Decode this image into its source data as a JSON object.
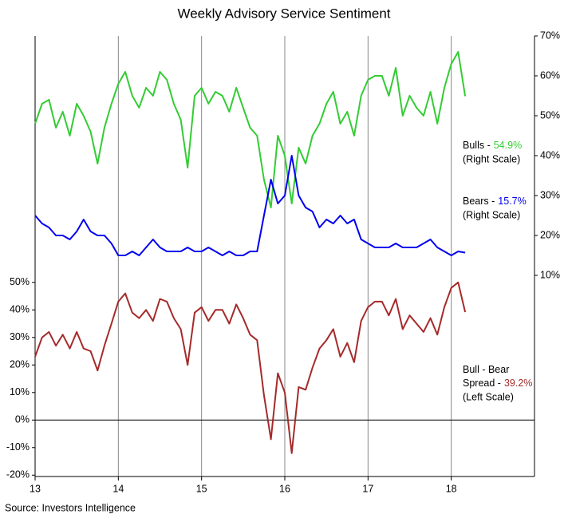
{
  "chart_data": {
    "type": "line",
    "title": "Weekly Advisory Service Sentiment",
    "source": "Source: Investors Intelligence",
    "x": [
      2013,
      2013.083,
      2013.167,
      2013.25,
      2013.333,
      2013.417,
      2013.5,
      2013.583,
      2013.667,
      2013.75,
      2013.833,
      2013.917,
      2014,
      2014.083,
      2014.167,
      2014.25,
      2014.333,
      2014.417,
      2014.5,
      2014.583,
      2014.667,
      2014.75,
      2014.833,
      2014.917,
      2015,
      2015.083,
      2015.167,
      2015.25,
      2015.333,
      2015.417,
      2015.5,
      2015.583,
      2015.667,
      2015.75,
      2015.833,
      2015.917,
      2016,
      2016.083,
      2016.167,
      2016.25,
      2016.333,
      2016.417,
      2016.5,
      2016.583,
      2016.667,
      2016.75,
      2016.833,
      2016.917,
      2017,
      2017.083,
      2017.167,
      2017.25,
      2017.333,
      2017.417,
      2017.5,
      2017.583,
      2017.667,
      2017.75,
      2017.833,
      2017.917,
      2018,
      2018.083,
      2018.167
    ],
    "series": [
      {
        "name": "Bulls",
        "color": "#33cc33",
        "axis": "y2",
        "values": [
          48,
          53,
          54,
          47,
          51,
          45,
          53,
          50,
          46,
          38,
          47,
          53,
          58,
          61,
          55,
          52,
          57,
          55,
          61,
          59,
          53,
          49,
          37,
          55,
          57,
          53,
          56,
          55,
          51,
          57,
          52,
          47,
          45,
          34,
          27,
          45,
          40,
          28,
          42,
          38,
          45,
          48,
          53,
          56,
          48,
          51,
          45,
          55,
          59,
          60,
          60,
          55,
          62,
          50,
          55,
          52,
          50,
          56,
          48,
          57,
          63,
          66,
          54.9
        ]
      },
      {
        "name": "Bears",
        "color": "#0000ee",
        "axis": "y2",
        "values": [
          25,
          23,
          22,
          20,
          20,
          19,
          21,
          24,
          21,
          20,
          20,
          18,
          15,
          15,
          16,
          15,
          17,
          19,
          17,
          16,
          16,
          16,
          17,
          16,
          16,
          17,
          16,
          15,
          16,
          15,
          15,
          16,
          16,
          25,
          34,
          28,
          30,
          40,
          30,
          27,
          26,
          22,
          24,
          23,
          25,
          23,
          24,
          19,
          18,
          17,
          17,
          17,
          18,
          17,
          17,
          17,
          18,
          19,
          17,
          16,
          15,
          16,
          15.7
        ]
      },
      {
        "name": "Bull - Bear Spread",
        "color": "#a52a2a",
        "axis": "y",
        "values": [
          23,
          30,
          32,
          27,
          31,
          26,
          32,
          26,
          25,
          18,
          27,
          35,
          43,
          46,
          39,
          37,
          40,
          36,
          44,
          43,
          37,
          33,
          20,
          39,
          41,
          36,
          40,
          40,
          35,
          42,
          37,
          31,
          29,
          9,
          -7,
          17,
          10,
          -12,
          12,
          11,
          19,
          26,
          29,
          33,
          23,
          28,
          21,
          36,
          41,
          43,
          43,
          38,
          44,
          33,
          38,
          35,
          32,
          37,
          31,
          41,
          48,
          50,
          39.2
        ]
      }
    ],
    "annotations": [
      {
        "lines": [
          "Bulls -"
        ],
        "value": "54.9%",
        "note": "(Right Scale)"
      },
      {
        "lines": [
          "Bears -"
        ],
        "value": "15.7%",
        "note": "(Right Scale)"
      },
      {
        "lines": [
          "Bull - Bear",
          "Spread -"
        ],
        "value": "39.2%",
        "note": "(Left Scale)"
      }
    ],
    "xlim": [
      2013,
      2019
    ],
    "xticks": [
      {
        "value": 2013,
        "label": "13"
      },
      {
        "value": 2014,
        "label": "14"
      },
      {
        "value": 2015,
        "label": "15"
      },
      {
        "value": 2016,
        "label": "16"
      },
      {
        "value": 2017,
        "label": "17"
      },
      {
        "value": 2018,
        "label": "18"
      }
    ],
    "ylim": [
      -20.5,
      139.5
    ],
    "yticks": [
      {
        "value": -20,
        "label": "-20%"
      },
      {
        "value": -10,
        "label": "-10%"
      },
      {
        "value": 0,
        "label": "0%"
      },
      {
        "value": 10,
        "label": "10%"
      },
      {
        "value": 20,
        "label": "20%"
      },
      {
        "value": 30,
        "label": "30%"
      },
      {
        "value": 40,
        "label": "40%"
      },
      {
        "value": 50,
        "label": "50%"
      }
    ],
    "y2lim": [
      -40.4,
      70
    ],
    "y2ticks": [
      {
        "value": 10,
        "label": "10%"
      },
      {
        "value": 20,
        "label": "20%"
      },
      {
        "value": 30,
        "label": "30%"
      },
      {
        "value": 40,
        "label": "40%"
      },
      {
        "value": 50,
        "label": "50%"
      },
      {
        "value": 60,
        "label": "60%"
      },
      {
        "value": 70,
        "label": "70%"
      }
    ],
    "grid": true,
    "zero_line": true
  }
}
